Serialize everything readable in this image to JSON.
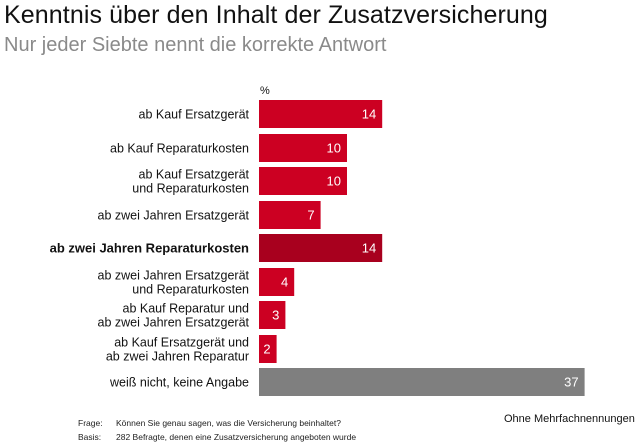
{
  "header": {
    "title": "Kenntnis über den Inhalt der Zusatzversicherung",
    "subtitle": "Nur jeder Siebte nennt die korrekte Antwort"
  },
  "chart_data": {
    "type": "bar",
    "orientation": "horizontal",
    "unit": "%",
    "categories": [
      "ab Kauf Ersatzgerät",
      "ab Kauf Reparaturkosten",
      "ab Kauf Ersatzgerät\nund Reparaturkosten",
      "ab zwei Jahren Ersatzgerät",
      "ab zwei Jahren Reparaturkosten",
      "ab zwei Jahren Ersatzgerät\nund Reparaturkosten",
      "ab Kauf Reparatur und\nab zwei Jahren Ersatzgerät",
      "ab Kauf Ersatzgerät und\nab zwei Jahren Reparatur",
      "weiß nicht, keine Angabe"
    ],
    "values": [
      14,
      10,
      10,
      7,
      14,
      4,
      3,
      2,
      37
    ],
    "highlight_index": 4,
    "colors": {
      "bar": "#cc0022",
      "highlight": "#a8001e",
      "neutral": "#7f7f7f"
    },
    "grid": false,
    "legend": "none"
  },
  "notes": {
    "right": "Ohne Mehrfachnennungen",
    "frage_key": "Frage:",
    "frage": "Können Sie genau sagen, was die Versicherung beinhaltet?",
    "basis_key": "Basis:",
    "basis": "282 Befragte, denen eine Zusatzversicherung angeboten wurde"
  }
}
